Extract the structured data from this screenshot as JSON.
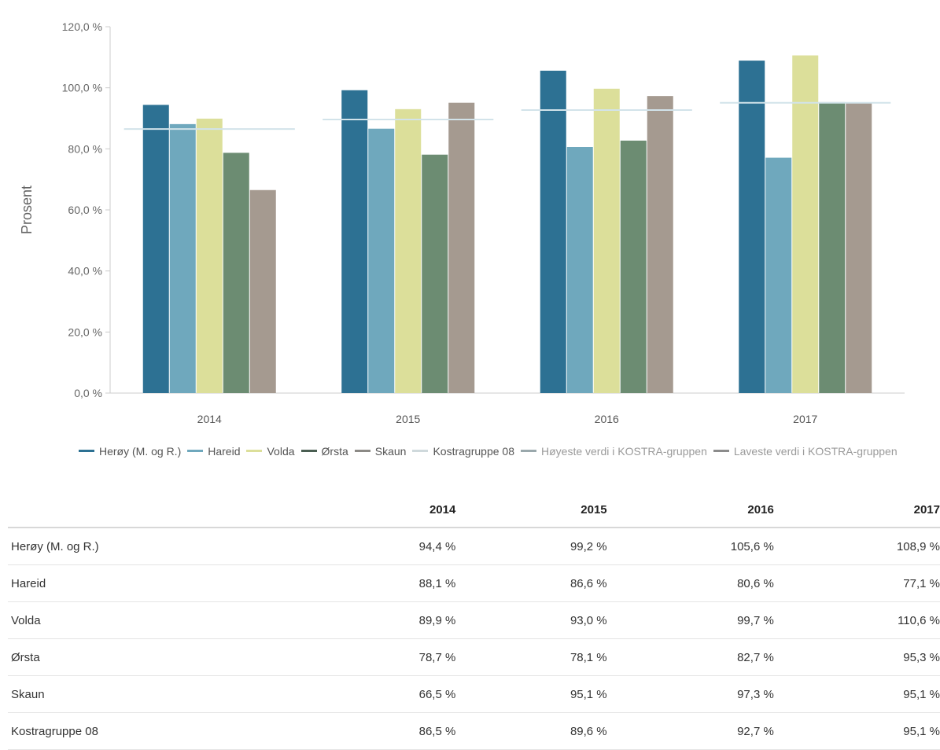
{
  "chart_data": {
    "type": "bar",
    "ylabel": "Prosent",
    "xlabel": "",
    "ylim": [
      0,
      120
    ],
    "y_ticks": [
      "0,0 %",
      "20,0 %",
      "40,0 %",
      "60,0 %",
      "80,0 %",
      "100,0 %",
      "120,0 %"
    ],
    "y_tick_values": [
      0,
      20,
      40,
      60,
      80,
      100,
      120
    ],
    "categories": [
      "2014",
      "2015",
      "2016",
      "2017"
    ],
    "series": [
      {
        "name": "Herøy (M. og R.)",
        "color": "#2d7193",
        "values": [
          94.4,
          99.2,
          105.6,
          108.9
        ]
      },
      {
        "name": "Hareid",
        "color": "#6fa8bd",
        "values": [
          88.1,
          86.6,
          80.6,
          77.1
        ]
      },
      {
        "name": "Volda",
        "color": "#dcdf9a",
        "values": [
          89.9,
          93.0,
          99.7,
          110.6
        ]
      },
      {
        "name": "Ørsta",
        "color": "#6c8c72",
        "values": [
          78.7,
          78.1,
          82.7,
          95.3
        ]
      },
      {
        "name": "Skaun",
        "color": "#a59a90",
        "values": [
          66.5,
          95.1,
          97.3,
          95.1
        ]
      }
    ],
    "reference_lines": [
      {
        "name": "Kostragruppe 08",
        "color": "#d2e3ea",
        "values": [
          86.5,
          89.6,
          92.7,
          95.1
        ]
      }
    ],
    "legend_position": "bottom",
    "grid": false
  },
  "legend": [
    {
      "label": "Herøy (M. og R.)",
      "color": "#2d7193",
      "style": "normal"
    },
    {
      "label": "Hareid",
      "color": "#6fa8bd",
      "style": "normal"
    },
    {
      "label": "Volda",
      "color": "#dcdf9a",
      "style": "normal"
    },
    {
      "label": "Ørsta",
      "color": "#4a5e52",
      "style": "normal"
    },
    {
      "label": "Skaun",
      "color": "#8c8a86",
      "style": "normal"
    },
    {
      "label": "Kostragruppe 08",
      "color": "#cfd9dc",
      "style": "normal"
    },
    {
      "label": "Høyeste verdi i KOSTRA-gruppen",
      "color": "#9aa8ac",
      "style": "light"
    },
    {
      "label": "Laveste verdi i KOSTRA-gruppen",
      "color": "#8c8c8c",
      "style": "light"
    }
  ],
  "table": {
    "headers": [
      "",
      "2014",
      "2015",
      "2016",
      "2017"
    ],
    "rows": [
      {
        "label": "Herøy (M. og R.)",
        "values": [
          "94,4 %",
          "99,2 %",
          "105,6 %",
          "108,9 %"
        ]
      },
      {
        "label": "Hareid",
        "values": [
          "88,1 %",
          "86,6 %",
          "80,6 %",
          "77,1 %"
        ]
      },
      {
        "label": "Volda",
        "values": [
          "89,9 %",
          "93,0 %",
          "99,7 %",
          "110,6 %"
        ]
      },
      {
        "label": "Ørsta",
        "values": [
          "78,7 %",
          "78,1 %",
          "82,7 %",
          "95,3 %"
        ]
      },
      {
        "label": "Skaun",
        "values": [
          "66,5 %",
          "95,1 %",
          "97,3 %",
          "95,1 %"
        ]
      },
      {
        "label": "Kostragruppe 08",
        "values": [
          "86,5 %",
          "89,6 %",
          "92,7 %",
          "95,1 %"
        ]
      }
    ]
  }
}
